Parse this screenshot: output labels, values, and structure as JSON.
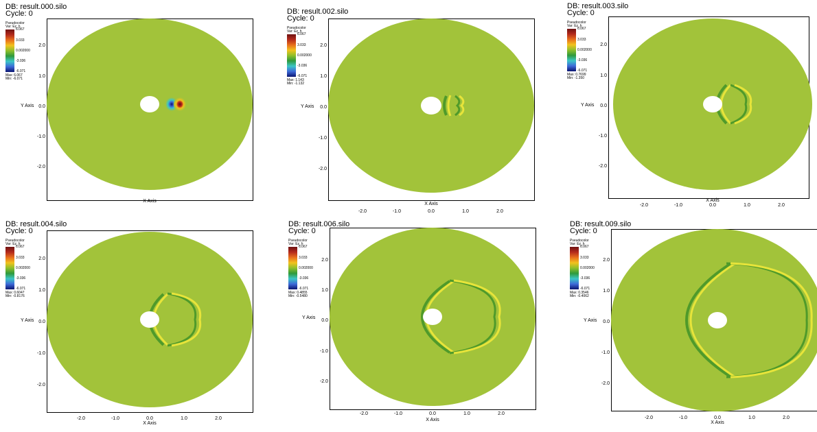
{
  "colors": {
    "field": "#a2c33a",
    "wave_dark": "#4f9a2a",
    "wave_light": "#e7e43a",
    "hole": "#ffffff"
  },
  "legend_common": {
    "title": "Pseudocolor",
    "var": "Var: Ez_h",
    "ticks": [
      "6.067",
      "3.033",
      "0.002000",
      "-3.036",
      "-6.071"
    ]
  },
  "axes_common": {
    "xlabel": "X Axis",
    "ylabel": "Y Axis",
    "xticks": [
      "-2.0",
      "-1.0",
      "0.0",
      "1.0",
      "2.0"
    ],
    "yticks": [
      "2.0",
      "1.0",
      "0.0",
      "-1.0",
      "-2.0"
    ]
  },
  "panels": [
    {
      "db": "DB: result.000.silo",
      "cycle": "Cycle: 0",
      "max": "Max: 6.067",
      "min": "Min: -6.071"
    },
    {
      "db": "DB: result.002.silo",
      "cycle": "Cycle: 0",
      "max": "Max: 1.143",
      "min": "Min: -1.132"
    },
    {
      "db": "DB: result.003.silo",
      "cycle": "Cycle: 0",
      "max": "Max: 0.7699",
      "min": "Min: -1.350"
    },
    {
      "db": "DB: result.004.silo",
      "cycle": "Cycle: 0",
      "max": "Max: 0.6047",
      "min": "Min: -0.8176"
    },
    {
      "db": "DB: result.006.silo",
      "cycle": "Cycle: 0",
      "max": "Max: 0.4855",
      "min": "Min: -0.5480"
    },
    {
      "db": "DB: result.009.silo",
      "cycle": "Cycle: 0",
      "max": "Max: 0.3546",
      "min": "Min: -0.4062"
    }
  ],
  "chart_data": [
    {
      "type": "heatmap",
      "xlim": [
        -3,
        3
      ],
      "ylim": [
        -3,
        3
      ],
      "grid": false,
      "legend_placement": "top-left"
    },
    {
      "type": "heatmap",
      "xlim": [
        -3,
        3
      ],
      "ylim": [
        -3,
        3
      ],
      "grid": false,
      "legend_placement": "top-left"
    },
    {
      "type": "heatmap",
      "xlim": [
        -3,
        3
      ],
      "ylim": [
        -3,
        3
      ],
      "grid": false,
      "legend_placement": "top-left"
    },
    {
      "type": "heatmap",
      "xlim": [
        -3,
        3
      ],
      "ylim": [
        -3,
        3
      ],
      "grid": false,
      "legend_placement": "top-left"
    },
    {
      "type": "heatmap",
      "xlim": [
        -3,
        3
      ],
      "ylim": [
        -3,
        3
      ],
      "grid": false,
      "legend_placement": "top-left"
    },
    {
      "type": "heatmap",
      "xlim": [
        -3,
        3
      ],
      "ylim": [
        -3,
        3
      ],
      "grid": false,
      "legend_placement": "top-left"
    }
  ]
}
